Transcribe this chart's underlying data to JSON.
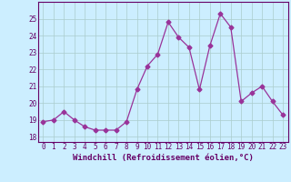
{
  "x": [
    0,
    1,
    2,
    3,
    4,
    5,
    6,
    7,
    8,
    9,
    10,
    11,
    12,
    13,
    14,
    15,
    16,
    17,
    18,
    19,
    20,
    21,
    22,
    23
  ],
  "y": [
    18.9,
    19.0,
    19.5,
    19.0,
    18.6,
    18.4,
    18.4,
    18.4,
    18.9,
    20.8,
    22.2,
    22.9,
    24.8,
    23.9,
    23.3,
    20.8,
    23.4,
    25.3,
    24.5,
    20.1,
    20.6,
    21.0,
    20.1,
    19.3
  ],
  "line_color": "#993399",
  "marker": "D",
  "marker_size": 2.5,
  "bg_color": "#cceeff",
  "grid_color": "#aacccc",
  "xlabel": "Windchill (Refroidissement éolien,°C)",
  "ylim": [
    17.7,
    26.0
  ],
  "xlim": [
    -0.5,
    23.5
  ],
  "yticks": [
    18,
    19,
    20,
    21,
    22,
    23,
    24,
    25
  ],
  "xticks": [
    0,
    1,
    2,
    3,
    4,
    5,
    6,
    7,
    8,
    9,
    10,
    11,
    12,
    13,
    14,
    15,
    16,
    17,
    18,
    19,
    20,
    21,
    22,
    23
  ],
  "tick_fontsize": 5.5,
  "xlabel_fontsize": 6.5,
  "axis_color": "#660066",
  "spine_color": "#660066"
}
